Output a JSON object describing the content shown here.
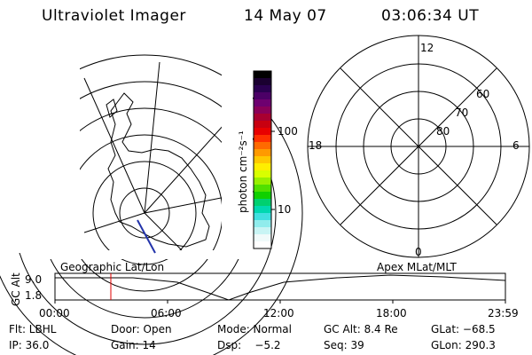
{
  "header": {
    "instrument": "Ultraviolet Imager",
    "date": "14 May 07",
    "time": "03:06:34 UT"
  },
  "colorbar": {
    "unit_label": "photon cm⁻²s⁻¹",
    "ticks": [
      "100",
      "10"
    ],
    "colors": [
      "#000000",
      "#1a0030",
      "#2a0050",
      "#4b0066",
      "#6e0070",
      "#8a0058",
      "#a80030",
      "#c80010",
      "#e80000",
      "#ff3000",
      "#ff6a00",
      "#ff9a00",
      "#ffc800",
      "#ffee00",
      "#d8ff00",
      "#98f000",
      "#50e000",
      "#10d000",
      "#00d070",
      "#00d8b0",
      "#40e0e0",
      "#90ecec",
      "#c8f4f4",
      "#f0fafa",
      "#ffffff"
    ]
  },
  "polar_plot": {
    "labels": {
      "top": "12",
      "left": "18",
      "right": "6",
      "bottom": "0",
      "lat60": "60",
      "lat70": "70",
      "lat80": "80"
    }
  },
  "timeline": {
    "left_title": "Geographic Lat/Lon",
    "right_title": "Apex MLat/MLT",
    "axis_label": "GC Alt",
    "y_ticks": [
      "9.0",
      "1.8"
    ],
    "x_ticks": [
      "00:00",
      "06:00",
      "12:00",
      "18:00",
      "23:59"
    ],
    "marker_color": "#e00000"
  },
  "status": {
    "row1": [
      "Flt: LBHL",
      "Door: Open",
      "Mode: Normal",
      "GC Alt: 8.4 Re",
      "GLat: −68.5"
    ],
    "row2": [
      "IP: 36.0",
      "Gain: 14",
      "Dsp:    −5.2",
      "Seq: 39",
      "GLon: 290.3"
    ]
  }
}
